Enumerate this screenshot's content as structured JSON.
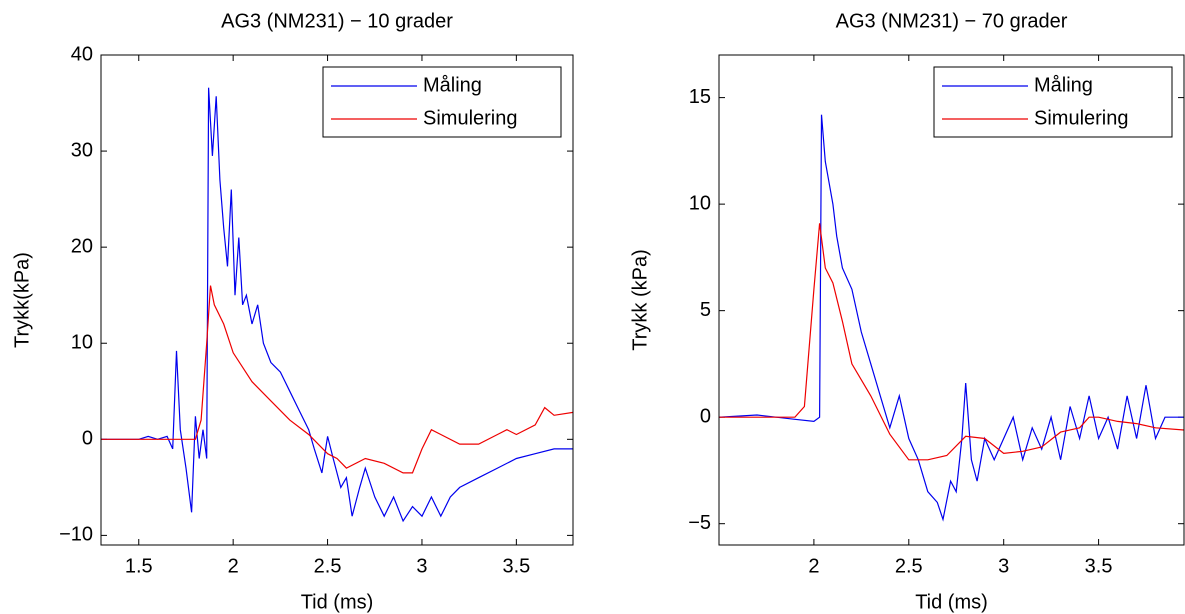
{
  "chart_data": [
    {
      "type": "line",
      "title": "AG3 (NM231) − 10 grader",
      "x_label": "Tid (ms)",
      "y_label": "Trykk(kPa)",
      "xlim": [
        1.3,
        3.8
      ],
      "ylim": [
        -11,
        40
      ],
      "xticks": [
        1.5,
        2,
        2.5,
        3,
        3.5
      ],
      "yticks": [
        {
          "value": -10,
          "label": "−10"
        },
        0,
        10,
        20,
        30,
        40
      ],
      "legend": "upper right",
      "series": [
        {
          "name": "Måling",
          "color": "#0000ee",
          "x": [
            1.3,
            1.5,
            1.55,
            1.6,
            1.65,
            1.68,
            1.7,
            1.72,
            1.75,
            1.78,
            1.8,
            1.82,
            1.84,
            1.86,
            1.87,
            1.89,
            1.91,
            1.93,
            1.95,
            1.97,
            1.99,
            2.01,
            2.03,
            2.05,
            2.07,
            2.1,
            2.13,
            2.16,
            2.2,
            2.25,
            2.3,
            2.35,
            2.4,
            2.43,
            2.47,
            2.5,
            2.53,
            2.57,
            2.6,
            2.63,
            2.67,
            2.7,
            2.75,
            2.8,
            2.85,
            2.9,
            2.95,
            3.0,
            3.05,
            3.1,
            3.15,
            3.2,
            3.3,
            3.4,
            3.5,
            3.6,
            3.7,
            3.8
          ],
          "values": [
            0,
            0,
            0.3,
            0,
            0.3,
            -1,
            9.2,
            1,
            -3,
            -7.6,
            2.4,
            -2,
            1,
            -2,
            36.6,
            29.5,
            35.7,
            27,
            22,
            18,
            26,
            15,
            21,
            14,
            15,
            12,
            14,
            10,
            8,
            7,
            5,
            3,
            1,
            -1,
            -3.5,
            0.3,
            -2,
            -5,
            -4,
            -8,
            -5,
            -3,
            -6,
            -8,
            -6,
            -8.5,
            -7,
            -8,
            -6,
            -8,
            -6,
            -5,
            -4,
            -3,
            -2,
            -1.5,
            -1,
            -1
          ]
        },
        {
          "name": "Simulering",
          "color": "#ee0000",
          "x": [
            1.3,
            1.8,
            1.83,
            1.86,
            1.88,
            1.9,
            1.95,
            2.0,
            2.1,
            2.2,
            2.3,
            2.4,
            2.5,
            2.55,
            2.6,
            2.7,
            2.8,
            2.9,
            2.95,
            3.0,
            3.05,
            3.1,
            3.2,
            3.3,
            3.4,
            3.45,
            3.5,
            3.6,
            3.65,
            3.7,
            3.8
          ],
          "values": [
            0,
            0,
            2,
            10,
            16,
            14,
            12,
            9,
            6,
            4,
            2,
            0.5,
            -1.5,
            -2,
            -3,
            -2,
            -2.5,
            -3.5,
            -3.5,
            -1,
            1,
            0.5,
            -0.5,
            -0.5,
            0.5,
            1,
            0.5,
            1.5,
            3.3,
            2.5,
            2.8
          ]
        }
      ]
    },
    {
      "type": "line",
      "title": "AG3 (NM231) − 70 grader",
      "x_label": "Tid (ms)",
      "y_label": "Trykk (kPa)",
      "xlim": [
        1.5,
        3.95
      ],
      "ylim": [
        -6,
        17
      ],
      "xticks": [
        2,
        2.5,
        3,
        3.5
      ],
      "yticks": [
        {
          "value": -5,
          "label": "−5"
        },
        0,
        5,
        10,
        15
      ],
      "legend": "upper right",
      "series": [
        {
          "name": "Måling",
          "color": "#0000ee",
          "x": [
            1.5,
            1.7,
            1.9,
            2.0,
            2.03,
            2.04,
            2.06,
            2.08,
            2.1,
            2.12,
            2.15,
            2.2,
            2.25,
            2.3,
            2.35,
            2.4,
            2.45,
            2.5,
            2.55,
            2.6,
            2.65,
            2.68,
            2.72,
            2.75,
            2.78,
            2.8,
            2.83,
            2.86,
            2.9,
            2.95,
            3.0,
            3.05,
            3.1,
            3.15,
            3.2,
            3.25,
            3.3,
            3.35,
            3.4,
            3.45,
            3.5,
            3.55,
            3.6,
            3.65,
            3.7,
            3.75,
            3.8,
            3.85,
            3.9,
            3.95
          ],
          "values": [
            0,
            0.1,
            -0.1,
            -0.2,
            0,
            14.2,
            12,
            11,
            10,
            8.5,
            7,
            6,
            4,
            2.5,
            1,
            -0.5,
            1,
            -1,
            -2,
            -3.5,
            -4,
            -4.8,
            -3,
            -3.5,
            -1,
            1.6,
            -2,
            -3,
            -1,
            -2,
            -1,
            0,
            -2,
            -0.5,
            -1.5,
            0,
            -2,
            0.5,
            -1,
            1,
            -1,
            0,
            -1.5,
            1,
            -1,
            1.5,
            -1,
            0,
            0,
            0
          ]
        },
        {
          "name": "Simulering",
          "color": "#ee0000",
          "x": [
            1.5,
            1.9,
            1.95,
            2.0,
            2.03,
            2.06,
            2.1,
            2.15,
            2.2,
            2.3,
            2.4,
            2.5,
            2.6,
            2.7,
            2.8,
            2.9,
            3.0,
            3.1,
            3.2,
            3.3,
            3.4,
            3.45,
            3.5,
            3.6,
            3.7,
            3.8,
            3.95
          ],
          "values": [
            0,
            0,
            0.5,
            6,
            9.1,
            7,
            6.3,
            4.5,
            2.5,
            1,
            -0.8,
            -2,
            -2,
            -1.8,
            -0.9,
            -1,
            -1.7,
            -1.6,
            -1.4,
            -0.7,
            -0.5,
            0,
            0,
            -0.2,
            -0.3,
            -0.5,
            -0.6
          ]
        }
      ]
    }
  ]
}
